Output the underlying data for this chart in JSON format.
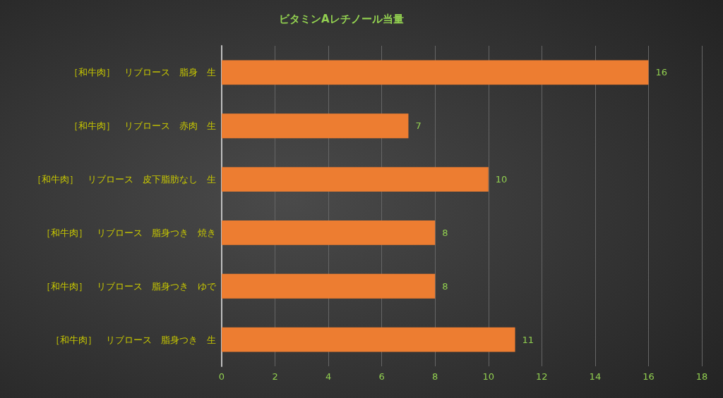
{
  "chart_data": {
    "type": "bar",
    "orientation": "horizontal",
    "title": "ビタミンAレチノール当量",
    "categories": [
      "［和牛肉］　リブロース　脂身　生",
      "［和牛肉］　リブロース　赤肉　生",
      "［和牛肉］　リブロース　皮下脂肪なし　生",
      "［和牛肉］　リブロース　脂身つき　焼き",
      "［和牛肉］　リブロース　脂身つき　ゆで",
      "［和牛肉］　リブロース　脂身つき　生"
    ],
    "values": [
      16,
      7,
      10,
      8,
      8,
      11
    ],
    "color": "#ed7d31",
    "xlim": [
      0,
      18
    ],
    "xticks": [
      0,
      2,
      4,
      6,
      8,
      10,
      12,
      14,
      16,
      18
    ],
    "grid": "x",
    "data_labels": true
  }
}
